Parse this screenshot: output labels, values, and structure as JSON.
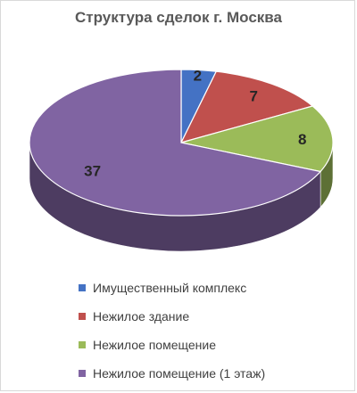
{
  "title": "Структура сделок г. Москва",
  "chart_data": {
    "type": "pie",
    "title": "Структура сделок г. Москва",
    "legend_position": "bottom",
    "categories": [
      "Имущественный комплекс",
      "Нежилое здание",
      "Нежилое помещение",
      "Нежилое помещение (1 этаж)"
    ],
    "values": [
      2,
      7,
      8,
      37
    ],
    "value_labels": [
      "2",
      "7",
      "8",
      "37"
    ],
    "colors": [
      "#4472C4",
      "#C0504D",
      "#9BBB59",
      "#8064A2"
    ]
  }
}
